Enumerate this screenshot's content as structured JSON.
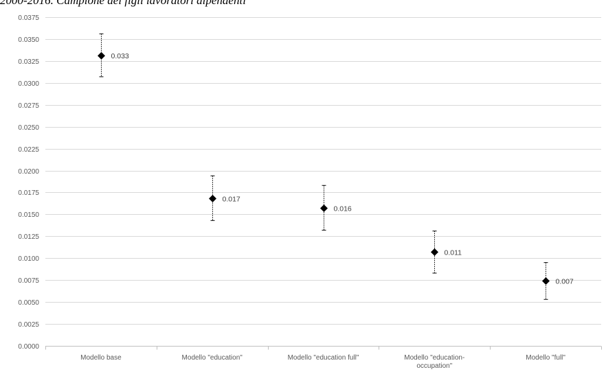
{
  "caption": "2000-2016. Campione dei figli lavoratori dipendenti",
  "chart_data": {
    "type": "scatter",
    "title": "",
    "xlabel": "",
    "ylabel": "",
    "ylim": [
      0,
      0.0375
    ],
    "y_ticks": [
      "0.0000",
      "0.0025",
      "0.0050",
      "0.0075",
      "0.0100",
      "0.0125",
      "0.0150",
      "0.0175",
      "0.0200",
      "0.0225",
      "0.0250",
      "0.0275",
      "0.0300",
      "0.0325",
      "0.0350",
      "0.0375"
    ],
    "grid": true,
    "categories": [
      [
        "Modello base"
      ],
      [
        "Modello \"education\""
      ],
      [
        "Modello \"education full\""
      ],
      [
        "Modello \"education-",
        "occupation\""
      ],
      [
        "Modello \"full\""
      ]
    ],
    "series": [
      {
        "values": [
          0.0331,
          0.0168,
          0.0157,
          0.0107,
          0.0074
        ],
        "lower": [
          0.0307,
          0.0143,
          0.0132,
          0.0083,
          0.0053
        ],
        "upper": [
          0.0356,
          0.0194,
          0.0183,
          0.0131,
          0.0095
        ],
        "labels": [
          "0.033",
          "0.017",
          "0.016",
          "0.011",
          "0.007"
        ]
      }
    ],
    "colors": {
      "grid": "#d9d9d9",
      "axis": "#bfbfbf",
      "marker": "#000000",
      "error_bar": "#000000"
    }
  }
}
